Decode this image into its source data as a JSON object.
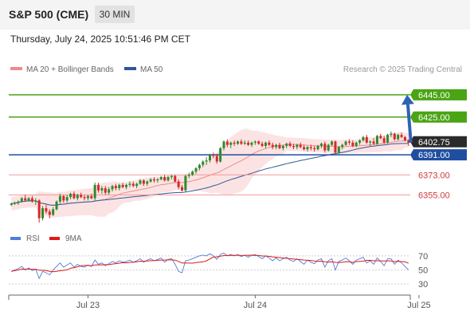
{
  "header": {
    "symbol": "S&P 500 (CME)",
    "timeframe": "30 MIN",
    "datetime": "Thursday, July 24, 2025 10:51:46 PM CET"
  },
  "chart_data": [
    {
      "type": "candlestick",
      "legend": [
        {
          "label": "MA 20 + Bollinger Bands",
          "color": "#f08a8a"
        },
        {
          "label": "MA 50",
          "color": "#2e5896"
        }
      ],
      "legend_placement": "top-left",
      "credit": "Research © 2025 Trading Central",
      "ylim": [
        6328,
        6460
      ],
      "x_ticks": [
        {
          "label": "Jul 23",
          "index": 22
        },
        {
          "label": "Jul 24",
          "index": 70
        },
        {
          "label": "Jul 25",
          "index": 117
        }
      ],
      "current_price": {
        "value": 6402.75,
        "label": "6402.75"
      },
      "levels": [
        {
          "value": 6445.0,
          "label": "6445.00",
          "role": "resistance"
        },
        {
          "value": 6425.0,
          "label": "6425.00",
          "role": "resistance"
        },
        {
          "value": 6391.0,
          "label": "6391.00",
          "role": "pivot"
        },
        {
          "value": 6373.0,
          "label": "6373.00",
          "role": "support"
        },
        {
          "value": 6355.0,
          "label": "6355.00",
          "role": "support"
        }
      ],
      "forecast_arrow": {
        "from": 6402,
        "to": 6445
      },
      "ohlc": [
        [
          6346,
          6348,
          6345,
          6347
        ],
        [
          6347,
          6349,
          6346,
          6348
        ],
        [
          6348,
          6350,
          6346,
          6349
        ],
        [
          6349,
          6353,
          6348,
          6352
        ],
        [
          6352,
          6355,
          6349,
          6350
        ],
        [
          6350,
          6353,
          6349,
          6352
        ],
        [
          6352,
          6354,
          6348,
          6349
        ],
        [
          6349,
          6352,
          6346,
          6350
        ],
        [
          6350,
          6351,
          6330,
          6334
        ],
        [
          6334,
          6345,
          6332,
          6343
        ],
        [
          6343,
          6346,
          6338,
          6340
        ],
        [
          6340,
          6342,
          6334,
          6337
        ],
        [
          6337,
          6344,
          6336,
          6342
        ],
        [
          6342,
          6350,
          6341,
          6349
        ],
        [
          6349,
          6356,
          6347,
          6354
        ],
        [
          6354,
          6355,
          6348,
          6350
        ],
        [
          6350,
          6355,
          6348,
          6353
        ],
        [
          6353,
          6357,
          6351,
          6356
        ],
        [
          6356,
          6358,
          6351,
          6352
        ],
        [
          6352,
          6356,
          6350,
          6355
        ],
        [
          6355,
          6357,
          6352,
          6353
        ],
        [
          6353,
          6355,
          6350,
          6352
        ],
        [
          6352,
          6355,
          6350,
          6354
        ],
        [
          6354,
          6356,
          6351,
          6352
        ],
        [
          6352,
          6366,
          6350,
          6364
        ],
        [
          6364,
          6366,
          6357,
          6359
        ],
        [
          6359,
          6363,
          6356,
          6361
        ],
        [
          6361,
          6363,
          6355,
          6357
        ],
        [
          6357,
          6362,
          6355,
          6360
        ],
        [
          6360,
          6364,
          6358,
          6363
        ],
        [
          6363,
          6365,
          6359,
          6361
        ],
        [
          6361,
          6365,
          6359,
          6364
        ],
        [
          6364,
          6366,
          6361,
          6362
        ],
        [
          6362,
          6365,
          6360,
          6364
        ],
        [
          6364,
          6367,
          6362,
          6365
        ],
        [
          6365,
          6367,
          6362,
          6363
        ],
        [
          6363,
          6366,
          6361,
          6365
        ],
        [
          6365,
          6369,
          6364,
          6368
        ],
        [
          6368,
          6369,
          6363,
          6365
        ],
        [
          6365,
          6368,
          6363,
          6367
        ],
        [
          6367,
          6370,
          6366,
          6369
        ],
        [
          6369,
          6371,
          6366,
          6368
        ],
        [
          6368,
          6370,
          6366,
          6369
        ],
        [
          6369,
          6372,
          6368,
          6371
        ],
        [
          6371,
          6373,
          6367,
          6368
        ],
        [
          6368,
          6372,
          6367,
          6371
        ],
        [
          6371,
          6373,
          6369,
          6372
        ],
        [
          6372,
          6373,
          6366,
          6367
        ],
        [
          6367,
          6369,
          6360,
          6362
        ],
        [
          6362,
          6364,
          6358,
          6359
        ],
        [
          6359,
          6373,
          6358,
          6372
        ],
        [
          6372,
          6375,
          6370,
          6373
        ],
        [
          6373,
          6377,
          6372,
          6376
        ],
        [
          6376,
          6380,
          6374,
          6379
        ],
        [
          6379,
          6383,
          6377,
          6382
        ],
        [
          6382,
          6386,
          6380,
          6385
        ],
        [
          6385,
          6389,
          6382,
          6386
        ],
        [
          6386,
          6392,
          6384,
          6391
        ],
        [
          6391,
          6393,
          6388,
          6390
        ],
        [
          6390,
          6392,
          6383,
          6385
        ],
        [
          6385,
          6398,
          6384,
          6397
        ],
        [
          6397,
          6404,
          6395,
          6403
        ],
        [
          6403,
          6405,
          6398,
          6400
        ],
        [
          6400,
          6403,
          6397,
          6402
        ],
        [
          6402,
          6404,
          6399,
          6401
        ],
        [
          6401,
          6404,
          6400,
          6403
        ],
        [
          6403,
          6405,
          6400,
          6401
        ],
        [
          6401,
          6404,
          6400,
          6402
        ],
        [
          6402,
          6404,
          6399,
          6400
        ],
        [
          6400,
          6403,
          6398,
          6402
        ],
        [
          6402,
          6404,
          6400,
          6403
        ],
        [
          6403,
          6404,
          6400,
          6401
        ],
        [
          6401,
          6403,
          6398,
          6399
        ],
        [
          6399,
          6403,
          6397,
          6402
        ],
        [
          6402,
          6404,
          6399,
          6400
        ],
        [
          6400,
          6402,
          6396,
          6398
        ],
        [
          6398,
          6401,
          6396,
          6400
        ],
        [
          6400,
          6402,
          6396,
          6397
        ],
        [
          6397,
          6400,
          6395,
          6399
        ],
        [
          6399,
          6402,
          6397,
          6401
        ],
        [
          6401,
          6403,
          6398,
          6399
        ],
        [
          6399,
          6401,
          6396,
          6398
        ],
        [
          6398,
          6401,
          6396,
          6400
        ],
        [
          6400,
          6402,
          6397,
          6398
        ],
        [
          6398,
          6400,
          6395,
          6396
        ],
        [
          6396,
          6399,
          6394,
          6398
        ],
        [
          6398,
          6400,
          6395,
          6397
        ],
        [
          6397,
          6399,
          6394,
          6396
        ],
        [
          6396,
          6400,
          6395,
          6399
        ],
        [
          6399,
          6402,
          6397,
          6401
        ],
        [
          6401,
          6403,
          6393,
          6395
        ],
        [
          6395,
          6401,
          6394,
          6400
        ],
        [
          6400,
          6404,
          6399,
          6403
        ],
        [
          6403,
          6404,
          6392,
          6393
        ],
        [
          6393,
          6399,
          6392,
          6398
        ],
        [
          6398,
          6401,
          6396,
          6400
        ],
        [
          6400,
          6404,
          6399,
          6403
        ],
        [
          6403,
          6405,
          6400,
          6402
        ],
        [
          6402,
          6404,
          6398,
          6399
        ],
        [
          6399,
          6403,
          6398,
          6402
        ],
        [
          6402,
          6405,
          6400,
          6404
        ],
        [
          6404,
          6408,
          6403,
          6407
        ],
        [
          6407,
          6409,
          6401,
          6402
        ],
        [
          6402,
          6404,
          6399,
          6403
        ],
        [
          6403,
          6406,
          6400,
          6401
        ],
        [
          6401,
          6409,
          6400,
          6408
        ],
        [
          6408,
          6410,
          6405,
          6406
        ],
        [
          6406,
          6408,
          6401,
          6402
        ],
        [
          6402,
          6410,
          6401,
          6409
        ],
        [
          6409,
          6412,
          6407,
          6410
        ],
        [
          6410,
          6411,
          6404,
          6405
        ],
        [
          6405,
          6410,
          6404,
          6409
        ],
        [
          6409,
          6411,
          6406,
          6407
        ],
        [
          6407,
          6408,
          6403,
          6404
        ],
        [
          6404,
          6405,
          6399,
          6402
        ]
      ]
    },
    {
      "type": "line",
      "legend": [
        {
          "label": "RSI",
          "color": "#4f7fd6"
        },
        {
          "label": "9MA",
          "color": "#e01818"
        }
      ],
      "legend_placement": "top-left",
      "ylim": [
        20,
        80
      ],
      "y_ticks": [
        {
          "value": 70,
          "label": "70"
        },
        {
          "value": 50,
          "label": "50"
        },
        {
          "value": 30,
          "label": "30"
        }
      ],
      "rsi": [
        48,
        50,
        52,
        55,
        50,
        53,
        49,
        51,
        38,
        48,
        46,
        43,
        50,
        55,
        60,
        54,
        57,
        60,
        54,
        58,
        55,
        54,
        57,
        55,
        64,
        58,
        60,
        56,
        59,
        62,
        60,
        63,
        61,
        62,
        64,
        61,
        63,
        66,
        61,
        64,
        66,
        63,
        65,
        67,
        61,
        65,
        66,
        58,
        48,
        46,
        63,
        64,
        66,
        68,
        70,
        71,
        70,
        73,
        70,
        65,
        72,
        74,
        70,
        72,
        70,
        72,
        69,
        71,
        68,
        71,
        72,
        69,
        66,
        70,
        67,
        63,
        67,
        63,
        66,
        68,
        64,
        62,
        66,
        62,
        58,
        64,
        61,
        59,
        64,
        66,
        54,
        63,
        66,
        50,
        62,
        64,
        67,
        63,
        58,
        64,
        66,
        68,
        60,
        63,
        58,
        67,
        62,
        56,
        66,
        66,
        58,
        64,
        60,
        55,
        50
      ]
    }
  ]
}
